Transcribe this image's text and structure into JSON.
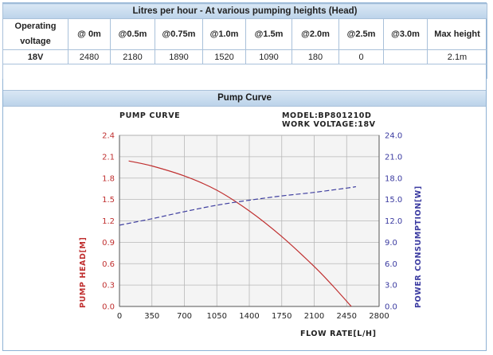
{
  "table": {
    "title": "Litres per hour - At various pumping heights (Head)",
    "columns": [
      "Operating voltage",
      "@ 0m",
      "@0.5m",
      "@0.75m",
      "@1.0m",
      "@1.5m",
      "@2.0m",
      "@2.5m",
      "@3.0m",
      "Max height"
    ],
    "rows": [
      [
        "18V",
        "2480",
        "2180",
        "1890",
        "1520",
        "1090",
        "180",
        "0",
        "",
        "2.1m"
      ]
    ]
  },
  "curve_section_title": "Pump Curve",
  "chart_data": {
    "type": "line",
    "title": "PUMP CURVE",
    "model_label": "MODEL:BP801210D",
    "voltage_label": "WORK VOLTAGE:18V",
    "xlabel": "FLOW RATE[L/H]",
    "ylabel": "PUMP HEAD[M]",
    "y2label": "POWER CONSUMPTION[W]",
    "xlim": [
      0,
      2800
    ],
    "ylim": [
      0,
      2.4
    ],
    "y2lim": [
      0,
      24
    ],
    "x_ticks": [
      "0",
      "350",
      "700",
      "1050",
      "1400",
      "1750",
      "2100",
      "2450",
      "2800"
    ],
    "y_ticks": [
      "0.0",
      "0.3",
      "0.6",
      "0.9",
      "1.2",
      "1.5",
      "1.8",
      "2.1",
      "2.4"
    ],
    "y2_ticks": [
      "0.0",
      "3.0",
      "6.0",
      "9.0",
      "12.0",
      "15.0",
      "18.0",
      "21.0",
      "24.0"
    ],
    "grid": true,
    "series": [
      {
        "name": "PUMP HEAD[M]",
        "axis": "left",
        "color": "#c03030",
        "style": "solid",
        "x": [
          100,
          350,
          700,
          1050,
          1400,
          1750,
          2100,
          2300,
          2500
        ],
        "y": [
          2.04,
          1.97,
          1.83,
          1.63,
          1.34,
          0.98,
          0.56,
          0.29,
          0.0
        ]
      },
      {
        "name": "POWER CONSUMPTION[W]",
        "axis": "right",
        "color": "#4040a0",
        "style": "dashed",
        "x": [
          0,
          350,
          700,
          1050,
          1400,
          1750,
          2100,
          2450,
          2550
        ],
        "y": [
          11.4,
          12.3,
          13.3,
          14.2,
          14.9,
          15.5,
          16.0,
          16.6,
          16.8
        ]
      }
    ]
  },
  "colors": {
    "header_bar": "#c9dcef",
    "border": "#a9c1da",
    "head_axis": "#c03030",
    "power_axis": "#3a3aa0"
  }
}
